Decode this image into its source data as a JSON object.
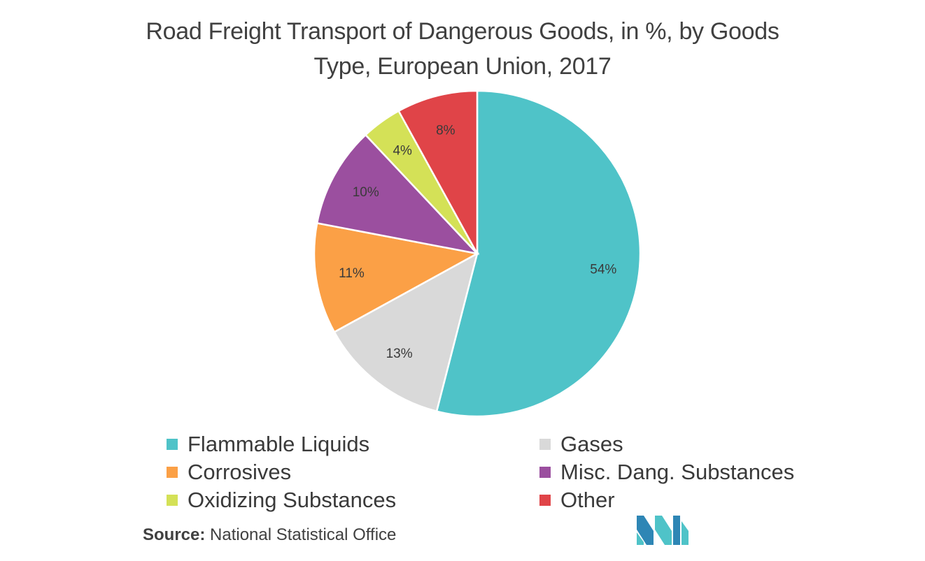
{
  "title": {
    "line1": "Road Freight Transport of Dangerous Goods, in %, by Goods",
    "line2": "Type, European Union, 2017"
  },
  "chart_data": {
    "type": "pie",
    "title": "Road Freight Transport of Dangerous Goods, in %, by Goods Type, European Union, 2017",
    "start": "12 o'clock, clockwise",
    "slices": [
      {
        "name": "Flammable Liquids",
        "value": 54,
        "label": "54%",
        "color": "#4FC3C8"
      },
      {
        "name": "Gases",
        "value": 13,
        "label": "13%",
        "color": "#D9D9D9"
      },
      {
        "name": "Corrosives",
        "value": 11,
        "label": "11%",
        "color": "#FBA046"
      },
      {
        "name": "Misc. Dang. Substances",
        "value": 10,
        "label": "10%",
        "color": "#9B4F9F"
      },
      {
        "name": "Oxidizing Substances",
        "value": 4,
        "label": "4%",
        "color": "#D4E157"
      },
      {
        "name": "Other",
        "value": 8,
        "label": "8%",
        "color": "#E04448"
      }
    ],
    "legend": [
      "Flammable Liquids",
      "Gases",
      "Corrosives",
      "Misc. Dang. Substances",
      "Oxidizing Substances",
      "Other"
    ]
  },
  "source": {
    "prefix": "Source:",
    "text": "National Statistical Office"
  },
  "logo": {
    "icon": "mordor-intelligence-logo-icon",
    "colors": [
      "#2E86B5",
      "#4FC3C8"
    ]
  }
}
